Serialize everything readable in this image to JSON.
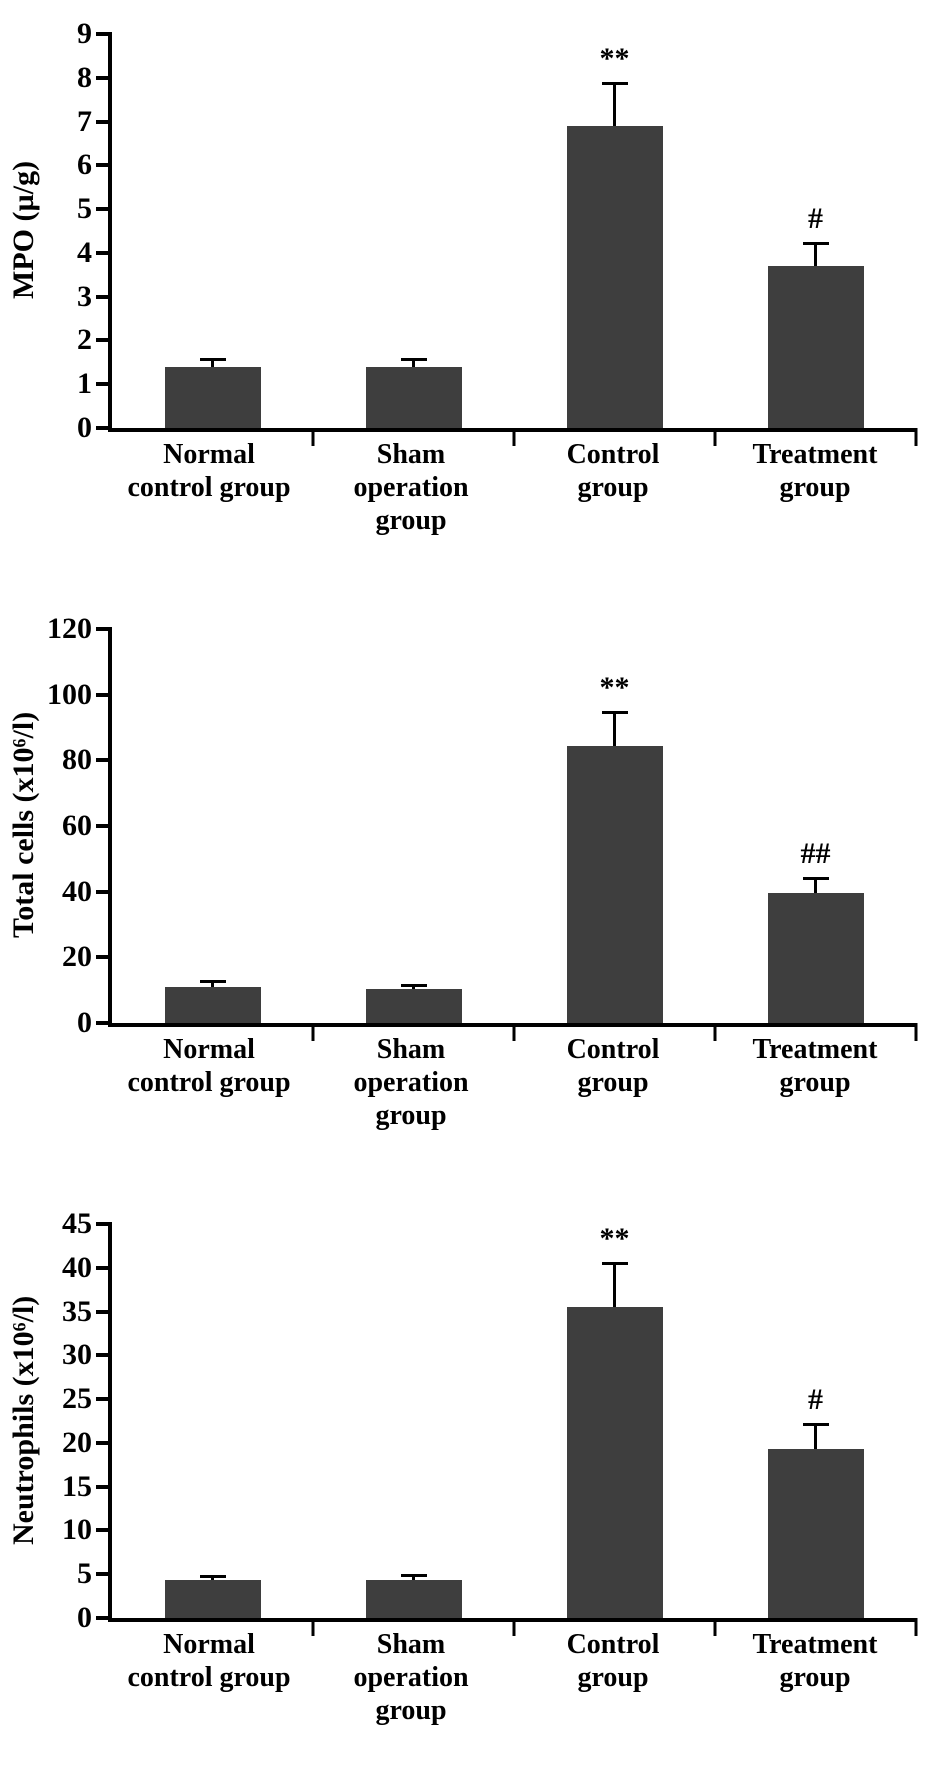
{
  "style": {
    "bar_color": "#3e3e3e",
    "axis_color": "#000000",
    "background": "#ffffff"
  },
  "chart_data": [
    {
      "type": "bar",
      "title": "",
      "ylabel": "MPO (µ/g)",
      "xlabel": "",
      "ylim": [
        0,
        9
      ],
      "yticks": [
        0,
        1,
        2,
        3,
        4,
        5,
        6,
        7,
        8,
        9
      ],
      "categories": [
        "Normal control group",
        "Sham operation group",
        "Control group",
        "Treatment group"
      ],
      "category_lines": [
        [
          "Normal",
          "control group"
        ],
        [
          "Sham",
          "operation",
          "group"
        ],
        [
          "Control",
          "group"
        ],
        [
          "Treatment",
          "group"
        ]
      ],
      "values": [
        1.4,
        1.4,
        6.9,
        3.7
      ],
      "errors": [
        0.2,
        0.2,
        1.0,
        0.55
      ],
      "annotations": [
        "",
        "",
        "**",
        "#"
      ],
      "grid": false,
      "legend": false
    },
    {
      "type": "bar",
      "title": "",
      "ylabel": "Total cells (x10⁶/l)",
      "xlabel": "",
      "ylim": [
        0,
        120
      ],
      "yticks": [
        0,
        20,
        40,
        60,
        80,
        100,
        120
      ],
      "categories": [
        "Normal control group",
        "Sham operation group",
        "Control group",
        "Treatment group"
      ],
      "category_lines": [
        [
          "Normal",
          "control group"
        ],
        [
          "Sham",
          "operation",
          "group"
        ],
        [
          "Control",
          "group"
        ],
        [
          "Treatment",
          "group"
        ]
      ],
      "values": [
        11,
        10.5,
        84.5,
        39.5
      ],
      "errors": [
        2,
        1.5,
        10.5,
        5
      ],
      "annotations": [
        "",
        "",
        "**",
        "##"
      ],
      "grid": false,
      "legend": false
    },
    {
      "type": "bar",
      "title": "",
      "ylabel": "Neutrophils (x10⁶/l)",
      "xlabel": "",
      "ylim": [
        0,
        45
      ],
      "yticks": [
        0,
        5,
        10,
        15,
        20,
        25,
        30,
        35,
        40,
        45
      ],
      "categories": [
        "Normal control group",
        "Sham operation group",
        "Control group",
        "Treatment group"
      ],
      "category_lines": [
        [
          "Normal",
          "control group"
        ],
        [
          "Sham",
          "operation",
          "group"
        ],
        [
          "Control",
          "group"
        ],
        [
          "Treatment",
          "group"
        ]
      ],
      "values": [
        4.3,
        4.3,
        35.5,
        19.3
      ],
      "errors": [
        0.6,
        0.7,
        5.2,
        3.0
      ],
      "annotations": [
        "",
        "",
        "**",
        "#"
      ],
      "grid": false,
      "legend": false
    }
  ]
}
